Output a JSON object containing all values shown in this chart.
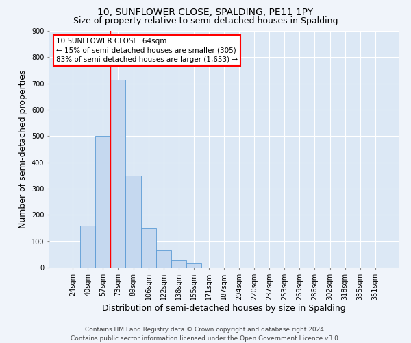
{
  "title": "10, SUNFLOWER CLOSE, SPALDING, PE11 1PY",
  "subtitle": "Size of property relative to semi-detached houses in Spalding",
  "xlabel": "Distribution of semi-detached houses by size in Spalding",
  "ylabel": "Number of semi-detached properties",
  "bar_labels": [
    "24sqm",
    "40sqm",
    "57sqm",
    "73sqm",
    "89sqm",
    "106sqm",
    "122sqm",
    "138sqm",
    "155sqm",
    "171sqm",
    "187sqm",
    "204sqm",
    "220sqm",
    "237sqm",
    "253sqm",
    "269sqm",
    "286sqm",
    "302sqm",
    "318sqm",
    "335sqm",
    "351sqm"
  ],
  "bar_values": [
    0,
    160,
    500,
    715,
    350,
    150,
    65,
    28,
    15,
    0,
    0,
    0,
    0,
    0,
    0,
    0,
    0,
    0,
    0,
    0,
    0
  ],
  "bar_color": "#c5d8ef",
  "bar_edge_color": "#5b9bd5",
  "ylim": [
    0,
    900
  ],
  "yticks": [
    0,
    100,
    200,
    300,
    400,
    500,
    600,
    700,
    800,
    900
  ],
  "red_line_x": 2.5,
  "annotation_line1": "10 SUNFLOWER CLOSE: 64sqm",
  "annotation_line2": "← 15% of semi-detached houses are smaller (305)",
  "annotation_line3": "83% of semi-detached houses are larger (1,653) →",
  "footer_line1": "Contains HM Land Registry data © Crown copyright and database right 2024.",
  "footer_line2": "Contains public sector information licensed under the Open Government Licence v3.0.",
  "bg_color": "#f0f4fa",
  "plot_bg_color": "#dce8f5",
  "grid_color": "#ffffff",
  "title_fontsize": 10,
  "subtitle_fontsize": 9,
  "axis_label_fontsize": 9,
  "tick_fontsize": 7,
  "footer_fontsize": 6.5,
  "annotation_fontsize": 7.5
}
